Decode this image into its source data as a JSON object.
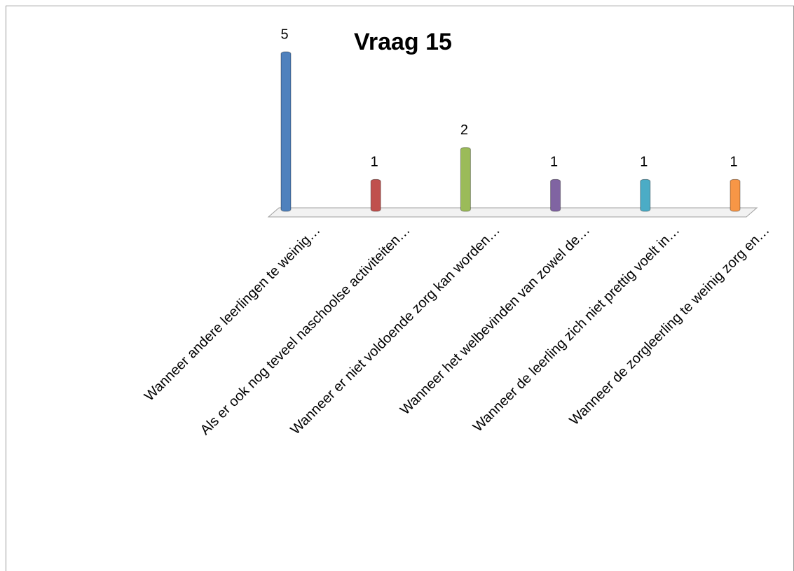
{
  "chart_data": {
    "type": "bar",
    "title": "Vraag 15",
    "categories": [
      "Wanneer andere leerlingen te weinig…",
      "Als er ook nog teveel naschoolse activiteiten…",
      "Wanneer er niet voldoende zorg kan worden…",
      "Wanneer het welbevinden van zowel de…",
      "Wanneer de leerling zich niet prettig voelt in…",
      "Wanneer de zorgleerling te weinig zorg en…"
    ],
    "values": [
      5,
      1,
      2,
      1,
      1,
      1
    ],
    "colors": [
      "#4f81bd",
      "#c0504d",
      "#9bbb59",
      "#8064a2",
      "#4bacc6",
      "#f79646"
    ]
  }
}
